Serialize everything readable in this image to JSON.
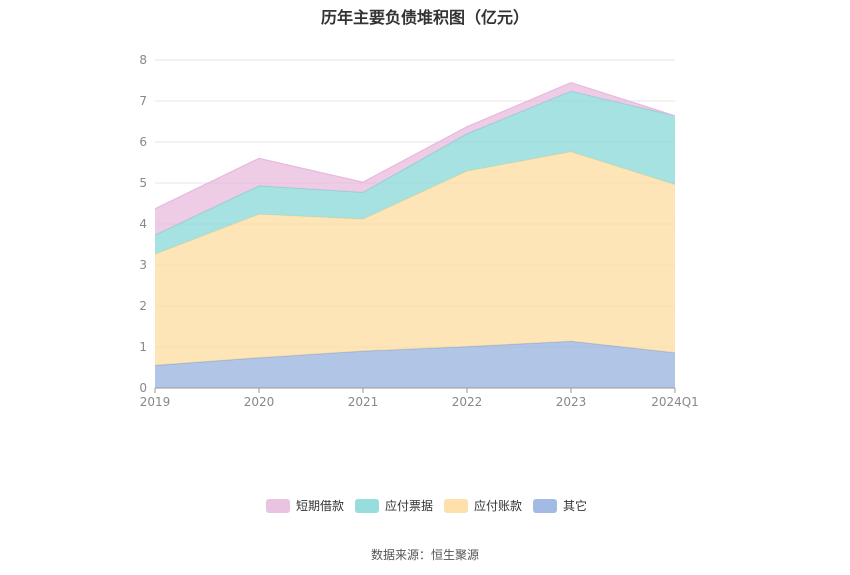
{
  "chart_data": {
    "type": "area",
    "title": "历年主要负债堆积图（亿元）",
    "categories": [
      "2019",
      "2020",
      "2021",
      "2022",
      "2023",
      "2024Q1"
    ],
    "y_ticks": [
      "0",
      "1",
      "2",
      "3",
      "4",
      "5",
      "6",
      "7",
      "8"
    ],
    "ylim": [
      0,
      8
    ],
    "stacked": true,
    "grid": true,
    "legend_position": "bottom",
    "series": [
      {
        "name": "其它",
        "color": "#93aedd",
        "values": [
          0.55,
          0.74,
          0.9,
          1.01,
          1.14,
          0.86
        ]
      },
      {
        "name": "应付账款",
        "color": "#fedb9b",
        "values": [
          2.71,
          3.5,
          3.22,
          4.28,
          4.62,
          4.1
        ]
      },
      {
        "name": "应付票据",
        "color": "#85d7d7",
        "values": [
          0.47,
          0.69,
          0.65,
          0.91,
          1.48,
          1.68
        ]
      },
      {
        "name": "短期借款",
        "color": "#e7b9dd",
        "values": [
          0.64,
          0.67,
          0.25,
          0.17,
          0.21,
          0.0
        ]
      }
    ],
    "legend_order": [
      "短期借款",
      "应付票据",
      "应付账款",
      "其它"
    ]
  },
  "source_text": "数据来源：恒生聚源"
}
